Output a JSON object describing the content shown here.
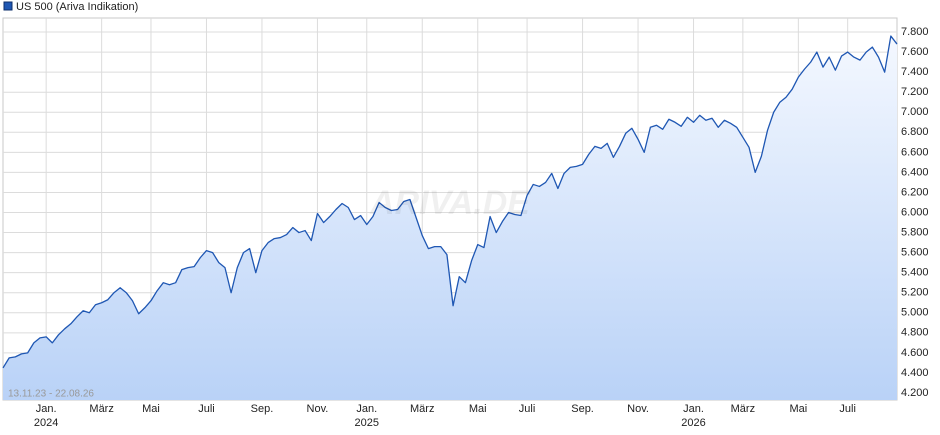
{
  "chart_data": {
    "type": "line",
    "date_range": "13.11.23 - 22.08.26",
    "watermark": "ARIVA.DE",
    "grid": true,
    "y_axis_side": "right",
    "area_fill": true,
    "ylim": [
      4130,
      7940
    ],
    "yticks": [
      {
        "value": 4200,
        "label": "4.200"
      },
      {
        "value": 4400,
        "label": "4.400"
      },
      {
        "value": 4600,
        "label": "4.600"
      },
      {
        "value": 4800,
        "label": "4.800"
      },
      {
        "value": 5000,
        "label": "5.000"
      },
      {
        "value": 5200,
        "label": "5.200"
      },
      {
        "value": 5400,
        "label": "5.400"
      },
      {
        "value": 5600,
        "label": "5.600"
      },
      {
        "value": 5800,
        "label": "5.800"
      },
      {
        "value": 6000,
        "label": "6.000"
      },
      {
        "value": 6200,
        "label": "6.200"
      },
      {
        "value": 6400,
        "label": "6.400"
      },
      {
        "value": 6600,
        "label": "6.600"
      },
      {
        "value": 6800,
        "label": "6.800"
      },
      {
        "value": 7000,
        "label": "7.000"
      },
      {
        "value": 7200,
        "label": "7.200"
      },
      {
        "value": 7400,
        "label": "7.400"
      },
      {
        "value": 7600,
        "label": "7.600"
      },
      {
        "value": 7800,
        "label": "7.800"
      }
    ],
    "categories": [
      null,
      null,
      null,
      null,
      null,
      null,
      null,
      "Jan.",
      null,
      null,
      null,
      null,
      null,
      null,
      null,
      null,
      "März",
      null,
      null,
      null,
      null,
      null,
      null,
      null,
      "Mai",
      null,
      null,
      null,
      null,
      null,
      null,
      null,
      null,
      "Juli",
      null,
      null,
      null,
      null,
      null,
      null,
      null,
      null,
      "Sep.",
      null,
      null,
      null,
      null,
      null,
      null,
      null,
      null,
      "Nov.",
      null,
      null,
      null,
      null,
      null,
      null,
      null,
      "Jan.",
      null,
      null,
      null,
      null,
      null,
      null,
      null,
      null,
      "März",
      null,
      null,
      null,
      null,
      null,
      null,
      null,
      null,
      "Mai",
      null,
      null,
      null,
      null,
      null,
      null,
      null,
      "Juli",
      null,
      null,
      null,
      null,
      null,
      null,
      null,
      null,
      "Sep.",
      null,
      null,
      null,
      null,
      null,
      null,
      null,
      null,
      "Nov.",
      null,
      null,
      null,
      null,
      null,
      null,
      null,
      null,
      "Jan.",
      null,
      null,
      null,
      null,
      null,
      null,
      null,
      "März",
      null,
      null,
      null,
      null,
      null,
      null,
      null,
      null,
      "Mai",
      null,
      null,
      null,
      null,
      null,
      null,
      null,
      "Juli",
      null,
      null,
      null,
      null,
      null,
      null,
      null,
      null
    ],
    "years": [
      null,
      null,
      null,
      null,
      null,
      null,
      null,
      "2024",
      null,
      null,
      null,
      null,
      null,
      null,
      null,
      null,
      null,
      null,
      null,
      null,
      null,
      null,
      null,
      null,
      null,
      null,
      null,
      null,
      null,
      null,
      null,
      null,
      null,
      null,
      null,
      null,
      null,
      null,
      null,
      null,
      null,
      null,
      null,
      null,
      null,
      null,
      null,
      null,
      null,
      null,
      null,
      null,
      null,
      null,
      null,
      null,
      null,
      null,
      null,
      "2025",
      null,
      null,
      null,
      null,
      null,
      null,
      null,
      null,
      null,
      null,
      null,
      null,
      null,
      null,
      null,
      null,
      null,
      null,
      null,
      null,
      null,
      null,
      null,
      null,
      null,
      null,
      null,
      null,
      null,
      null,
      null,
      null,
      null,
      null,
      null,
      null,
      null,
      null,
      null,
      null,
      null,
      null,
      null,
      null,
      null,
      null,
      null,
      null,
      null,
      null,
      null,
      null,
      "2026",
      null,
      null,
      null,
      null,
      null,
      null,
      null,
      null,
      null,
      null,
      null,
      null,
      null,
      null,
      null,
      null,
      null,
      null,
      null,
      null,
      null,
      null,
      null,
      null,
      null,
      null,
      null,
      null,
      null,
      null,
      null,
      null,
      null
    ],
    "series": [
      {
        "name": "US 500 (Ariva Indikation)",
        "color": "#1f57b3",
        "values": [
          4450,
          4550,
          4560,
          4590,
          4600,
          4700,
          4750,
          4760,
          4700,
          4780,
          4840,
          4890,
          4960,
          5020,
          5000,
          5080,
          5100,
          5130,
          5200,
          5250,
          5200,
          5120,
          4990,
          5050,
          5120,
          5220,
          5300,
          5280,
          5300,
          5430,
          5450,
          5460,
          5550,
          5620,
          5600,
          5500,
          5450,
          5200,
          5450,
          5600,
          5640,
          5400,
          5620,
          5700,
          5740,
          5750,
          5780,
          5850,
          5800,
          5820,
          5720,
          5990,
          5900,
          5960,
          6030,
          6090,
          6050,
          5930,
          5970,
          5880,
          5960,
          6100,
          6050,
          6020,
          6030,
          6110,
          6130,
          5950,
          5770,
          5640,
          5660,
          5660,
          5580,
          5070,
          5360,
          5300,
          5520,
          5680,
          5650,
          5960,
          5800,
          5910,
          6000,
          5980,
          5970,
          6170,
          6280,
          6260,
          6300,
          6390,
          6240,
          6390,
          6450,
          6460,
          6480,
          6580,
          6660,
          6640,
          6690,
          6550,
          6660,
          6790,
          6840,
          6730,
          6600,
          6850,
          6870,
          6830,
          6930,
          6900,
          6860,
          6950,
          6900,
          6970,
          6920,
          6940,
          6850,
          6920,
          6890,
          6850,
          6750,
          6650,
          6400,
          6560,
          6820,
          7000,
          7100,
          7150,
          7230,
          7350,
          7430,
          7500,
          7600,
          7450,
          7550,
          7420,
          7560,
          7600,
          7550,
          7520,
          7600,
          7650,
          7550,
          7400,
          7760,
          7680
        ]
      }
    ]
  }
}
